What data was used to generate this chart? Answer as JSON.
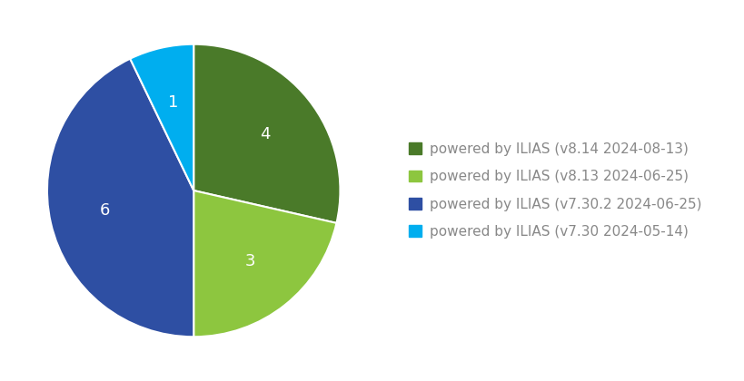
{
  "labels": [
    "powered by ILIAS (v8.14 2024-08-13)",
    "powered by ILIAS (v8.13 2024-06-25)",
    "powered by ILIAS (v7.30.2 2024-06-25)",
    "powered by ILIAS (v7.30 2024-05-14)"
  ],
  "values": [
    4,
    3,
    6,
    1
  ],
  "colors": [
    "#4a7a29",
    "#8dc63f",
    "#2e4fa3",
    "#00aeef"
  ],
  "startangle": 90,
  "background_color": "#ffffff",
  "text_color": "#888888",
  "legend_fontsize": 11,
  "autopct_fontsize": 13
}
